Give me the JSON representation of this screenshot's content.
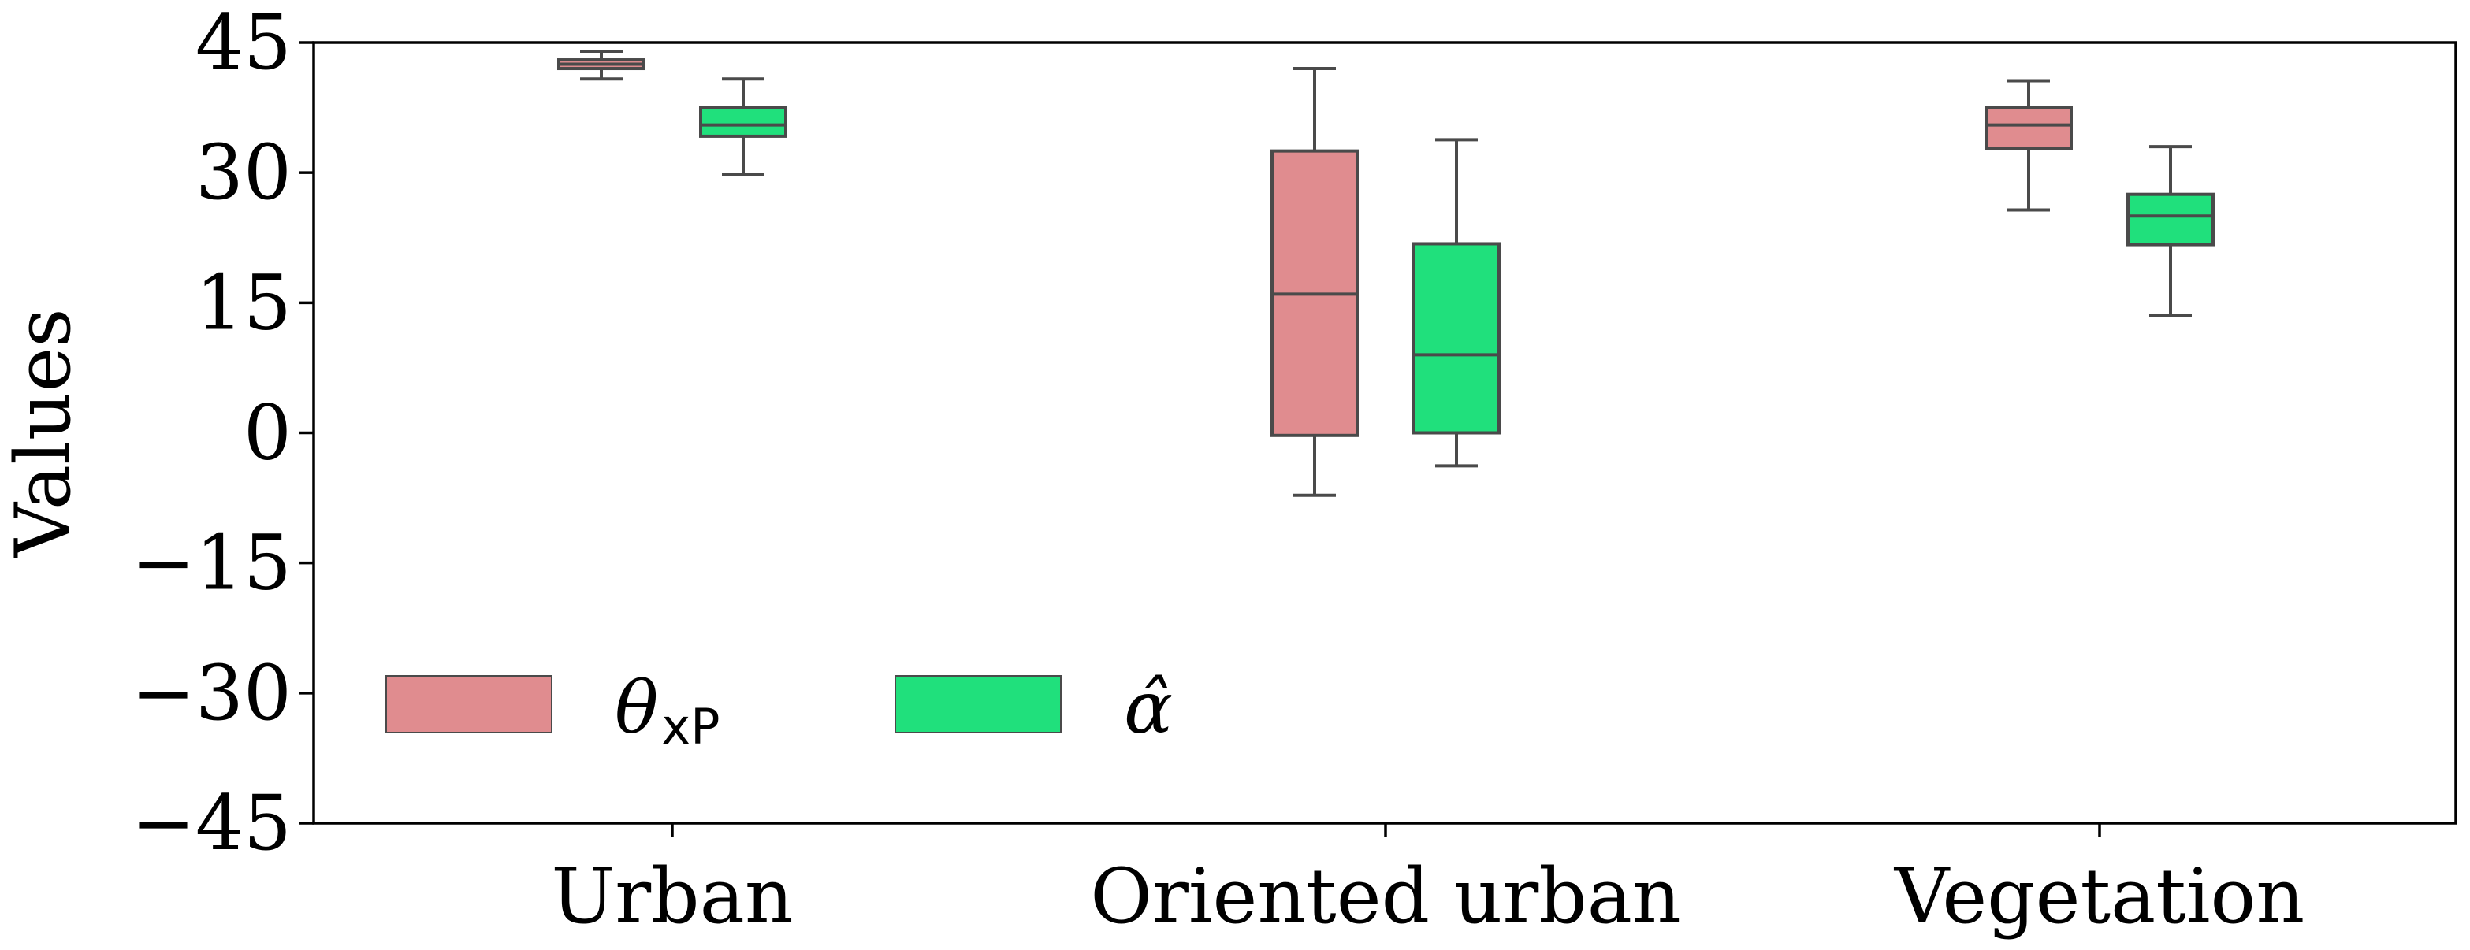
{
  "chart_data": {
    "type": "box",
    "categories": [
      "Urban",
      "Oriented urban",
      "Vegetation"
    ],
    "ylabel": "Values",
    "xlabel": "",
    "ylim": [
      -45,
      45
    ],
    "yticks": [
      45,
      30,
      15,
      0,
      -15,
      -30,
      -45
    ],
    "ytick_labels": [
      "45",
      "30",
      "15",
      "0",
      "−15",
      "−30",
      "−45"
    ],
    "grid": false,
    "legend_position": "lower-left",
    "series": [
      {
        "name": "θ",
        "name_subscript": "xP",
        "color": "#e08c8f",
        "boxes": [
          {
            "whislo": 40.8,
            "q1": 42.0,
            "med": 42.5,
            "q3": 43.0,
            "whishi": 44.0
          },
          {
            "whislo": -7.2,
            "q1": -0.3,
            "med": 16.0,
            "q3": 32.5,
            "whishi": 42.0
          },
          {
            "whislo": 25.7,
            "q1": 32.8,
            "med": 35.5,
            "q3": 37.5,
            "whishi": 40.6
          }
        ]
      },
      {
        "name": "α̂",
        "color": "#20e07c",
        "boxes": [
          {
            "whislo": 29.8,
            "q1": 34.2,
            "med": 35.5,
            "q3": 37.5,
            "whishi": 40.8
          },
          {
            "whislo": -3.8,
            "q1": 0.0,
            "med": 9.0,
            "q3": 21.8,
            "whishi": 33.8
          },
          {
            "whislo": 13.5,
            "q1": 21.7,
            "med": 25.0,
            "q3": 27.5,
            "whishi": 33.0
          }
        ]
      }
    ],
    "colors": {
      "edge": "#4a4a4a",
      "axis": "#000000"
    }
  }
}
